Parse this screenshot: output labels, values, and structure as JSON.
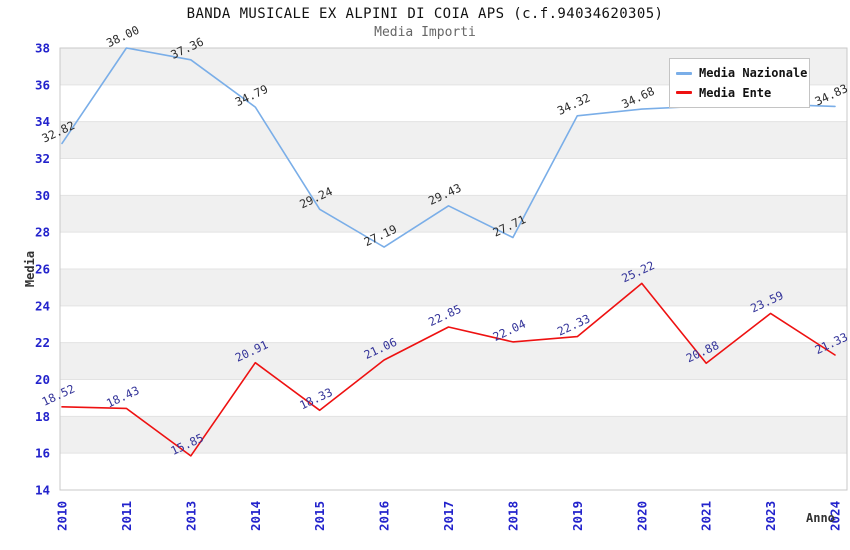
{
  "chart_data": {
    "type": "line",
    "title": "BANDA MUSICALE EX ALPINI DI COIA APS (c.f.94034620305)",
    "subtitle": "Media Importi",
    "xlabel": "Anno",
    "ylabel": "Media",
    "ylim": [
      14,
      38
    ],
    "ytick_step": 2,
    "grid": "alternating horizontal bands of 2 units, gray band at 36-38 then alternating",
    "legend_position": "top-right inside plot",
    "categories": [
      "2010",
      "2011",
      "2013",
      "2014",
      "2015",
      "2016",
      "2017",
      "2018",
      "2019",
      "2020",
      "2021",
      "2023",
      "2024"
    ],
    "series": [
      {
        "name": "Media Nazionale",
        "color": "#7aaee8",
        "label_color": "#2b2b2b",
        "values": [
          32.82,
          38.0,
          37.36,
          34.79,
          29.24,
          27.19,
          29.43,
          27.71,
          34.32,
          34.68,
          34.85,
          34.95,
          34.83
        ],
        "labels": [
          "32.82",
          "38.00",
          "37.36",
          "34.79",
          "29.24",
          "27.19",
          "29.43",
          "27.71",
          "34.32",
          "34.68",
          "",
          "",
          "34.83"
        ],
        "note": "labels for 2021 and 2023 are hidden behind the legend box"
      },
      {
        "name": "Media Ente",
        "color": "#ee1111",
        "label_color": "#333399",
        "values": [
          18.52,
          18.43,
          15.85,
          20.91,
          18.33,
          21.06,
          22.85,
          22.04,
          22.33,
          25.22,
          20.88,
          23.59,
          21.33
        ],
        "labels": [
          "18.52",
          "18.43",
          "15.85",
          "20.91",
          "18.33",
          "21.06",
          "22.85",
          "22.04",
          "22.33",
          "25.22",
          "20.88",
          "23.59",
          "21.33"
        ]
      }
    ],
    "colors": {
      "tick_label": "#2323cc",
      "band_gray": "#f0f0f0",
      "gridline": "#e3e3e3",
      "plot_border": "#c9c9c9",
      "axis_title": "#333333",
      "title": "#111111",
      "subtitle": "#666666"
    }
  }
}
